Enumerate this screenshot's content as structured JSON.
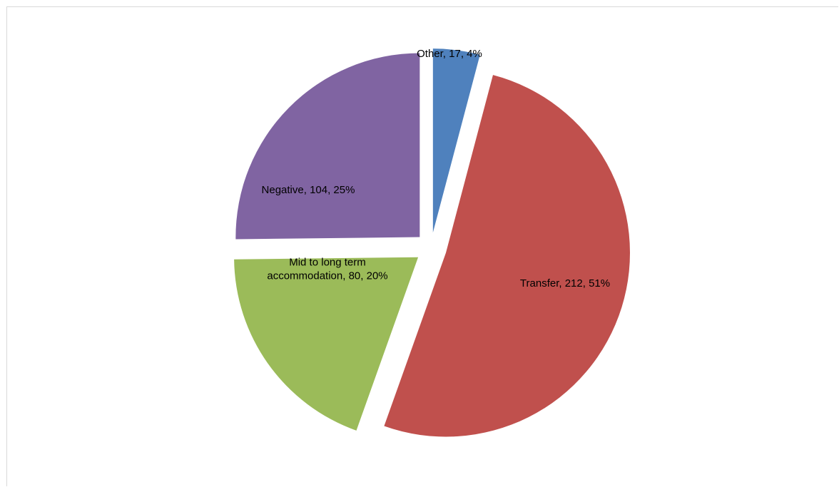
{
  "chart_data": {
    "type": "pie",
    "title": "",
    "slices": [
      {
        "name": "Other",
        "value": 17,
        "percent": "4%",
        "label_lines": [
          "Other, 17, 4%"
        ],
        "color": "#4f81bd",
        "exploded": true
      },
      {
        "name": "Transfer",
        "value": 212,
        "percent": "51%",
        "label_lines": [
          "Transfer, 212, 51%"
        ],
        "color": "#c0504d",
        "exploded": true
      },
      {
        "name": "Mid to long term accommodation",
        "value": 80,
        "percent": "20%",
        "label_lines": [
          "Mid to long term",
          "accommodation, 80, 20%"
        ],
        "color": "#9bbb59",
        "exploded": true
      },
      {
        "name": "Negative",
        "value": 104,
        "percent": "25%",
        "label_lines": [
          "Negative, 104, 25%"
        ],
        "color": "#8064a2",
        "exploded": true
      }
    ],
    "legend": "none",
    "data_labels": "category, value, percent"
  }
}
